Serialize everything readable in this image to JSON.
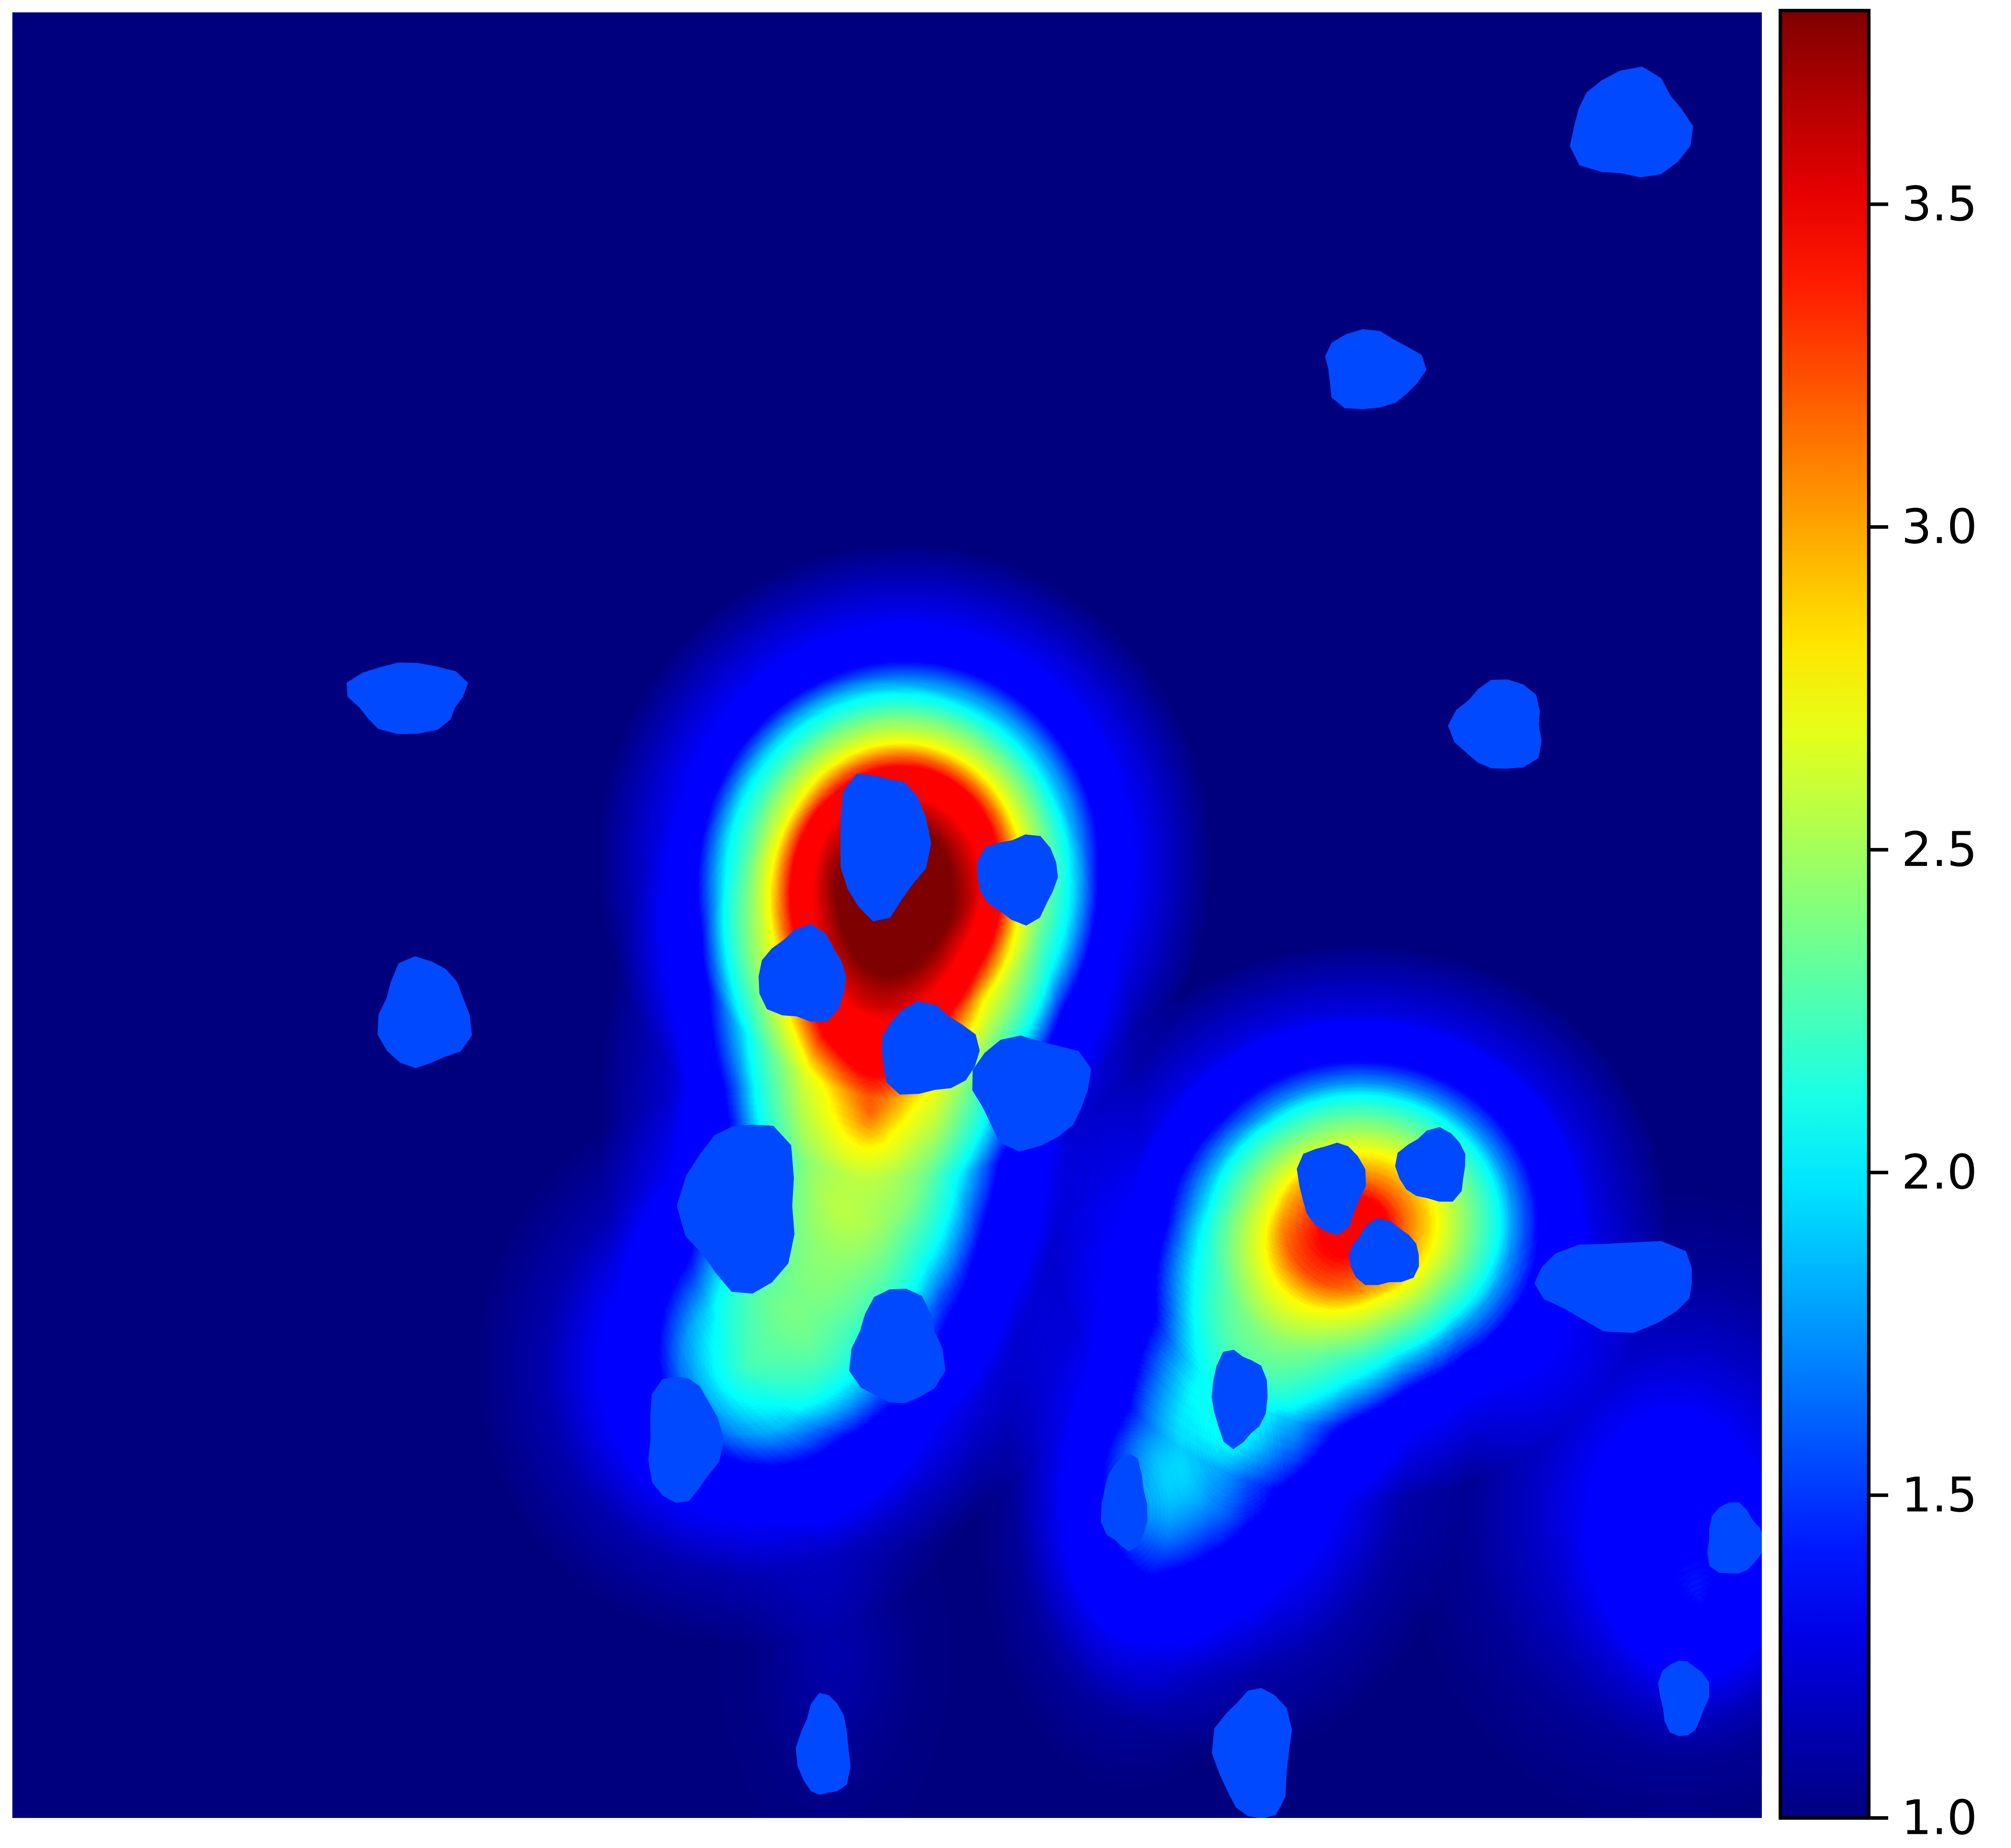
{
  "chart_data": {
    "type": "heatmap",
    "title": "",
    "xlabel": "",
    "ylabel": "",
    "colormap": "jet",
    "axes_visible": false,
    "grid": false,
    "colorbar": {
      "placement": "right",
      "range": [
        1.0,
        3.8
      ],
      "ticks": [
        1.0,
        1.5,
        2.0,
        2.5,
        3.0,
        3.5
      ],
      "tick_labels": [
        "1.0",
        "1.5",
        "2.0",
        "2.5",
        "3.0",
        "3.5"
      ]
    },
    "background_value": 1.0,
    "blob_value": 1.55,
    "hotspots": [
      {
        "name": "left-cluster-peak",
        "x": 0.51,
        "y": 0.47,
        "sx": 0.08,
        "sy": 0.08,
        "value": 2.75
      },
      {
        "name": "left-cluster-stem",
        "x": 0.49,
        "y": 0.61,
        "sx": 0.07,
        "sy": 0.11,
        "value": 1.7
      },
      {
        "name": "left-cluster-base",
        "x": 0.42,
        "y": 0.75,
        "sx": 0.07,
        "sy": 0.07,
        "value": 1.0
      },
      {
        "name": "right-cluster-peak",
        "x": 0.77,
        "y": 0.67,
        "sx": 0.08,
        "sy": 0.07,
        "value": 2.25
      },
      {
        "name": "right-cluster-lower",
        "x": 0.7,
        "y": 0.79,
        "sx": 0.06,
        "sy": 0.08,
        "value": 0.85
      },
      {
        "name": "valley-arm",
        "x": 0.64,
        "y": 0.83,
        "sx": 0.04,
        "sy": 0.07,
        "value": 0.55
      },
      {
        "name": "right-edge-arm",
        "x": 0.95,
        "y": 0.83,
        "sx": 0.07,
        "sy": 0.08,
        "value": 0.5
      },
      {
        "name": "bottom-right-spot",
        "x": 0.965,
        "y": 0.88,
        "sx": 0.035,
        "sy": 0.04,
        "value": 0.35
      },
      {
        "name": "bottom-tail",
        "x": 0.47,
        "y": 0.91,
        "sx": 0.03,
        "sy": 0.05,
        "value": 0.12
      }
    ],
    "cells": [
      {
        "name": "cell-top-right",
        "x": 0.925,
        "y": 0.063,
        "rx": 0.034,
        "ry": 0.03
      },
      {
        "name": "cell-upper-right",
        "x": 0.777,
        "y": 0.198,
        "rx": 0.028,
        "ry": 0.022
      },
      {
        "name": "cell-left-upper",
        "x": 0.226,
        "y": 0.379,
        "rx": 0.033,
        "ry": 0.02
      },
      {
        "name": "cell-right-mid",
        "x": 0.85,
        "y": 0.395,
        "rx": 0.026,
        "ry": 0.025
      },
      {
        "name": "cell-left-triangle",
        "x": 0.235,
        "y": 0.555,
        "rx": 0.026,
        "ry": 0.03
      },
      {
        "name": "cell-cluster-top",
        "x": 0.497,
        "y": 0.46,
        "rx": 0.026,
        "ry": 0.04
      },
      {
        "name": "cell-cluster-top-right",
        "x": 0.575,
        "y": 0.479,
        "rx": 0.023,
        "ry": 0.024
      },
      {
        "name": "cell-cluster-left",
        "x": 0.452,
        "y": 0.534,
        "rx": 0.025,
        "ry": 0.026
      },
      {
        "name": "cell-cluster-center",
        "x": 0.523,
        "y": 0.575,
        "rx": 0.028,
        "ry": 0.025
      },
      {
        "name": "cell-cluster-right",
        "x": 0.582,
        "y": 0.597,
        "rx": 0.033,
        "ry": 0.031
      },
      {
        "name": "cell-cluster-lower-left",
        "x": 0.417,
        "y": 0.661,
        "rx": 0.033,
        "ry": 0.047
      },
      {
        "name": "cell-cluster-bottom",
        "x": 0.506,
        "y": 0.74,
        "rx": 0.026,
        "ry": 0.032
      },
      {
        "name": "cell-far-lower-left",
        "x": 0.383,
        "y": 0.79,
        "rx": 0.021,
        "ry": 0.035
      },
      {
        "name": "cell-right-cluster-a",
        "x": 0.754,
        "y": 0.65,
        "rx": 0.019,
        "ry": 0.025
      },
      {
        "name": "cell-right-cluster-b",
        "x": 0.812,
        "y": 0.639,
        "rx": 0.02,
        "ry": 0.02
      },
      {
        "name": "cell-right-cluster-c",
        "x": 0.784,
        "y": 0.688,
        "rx": 0.02,
        "ry": 0.018
      },
      {
        "name": "cell-right-lower",
        "x": 0.701,
        "y": 0.767,
        "rx": 0.016,
        "ry": 0.026
      },
      {
        "name": "cell-right-edge",
        "x": 0.918,
        "y": 0.704,
        "rx": 0.045,
        "ry": 0.025
      },
      {
        "name": "cell-valley",
        "x": 0.636,
        "y": 0.826,
        "rx": 0.013,
        "ry": 0.026
      },
      {
        "name": "cell-edge-small",
        "x": 0.984,
        "y": 0.846,
        "rx": 0.016,
        "ry": 0.02
      },
      {
        "name": "cell-bottom-right",
        "x": 0.955,
        "y": 0.933,
        "rx": 0.014,
        "ry": 0.021
      },
      {
        "name": "cell-bottom-center",
        "x": 0.71,
        "y": 0.964,
        "rx": 0.022,
        "ry": 0.036
      },
      {
        "name": "cell-bottom-left",
        "x": 0.464,
        "y": 0.961,
        "rx": 0.015,
        "ry": 0.028
      }
    ]
  }
}
